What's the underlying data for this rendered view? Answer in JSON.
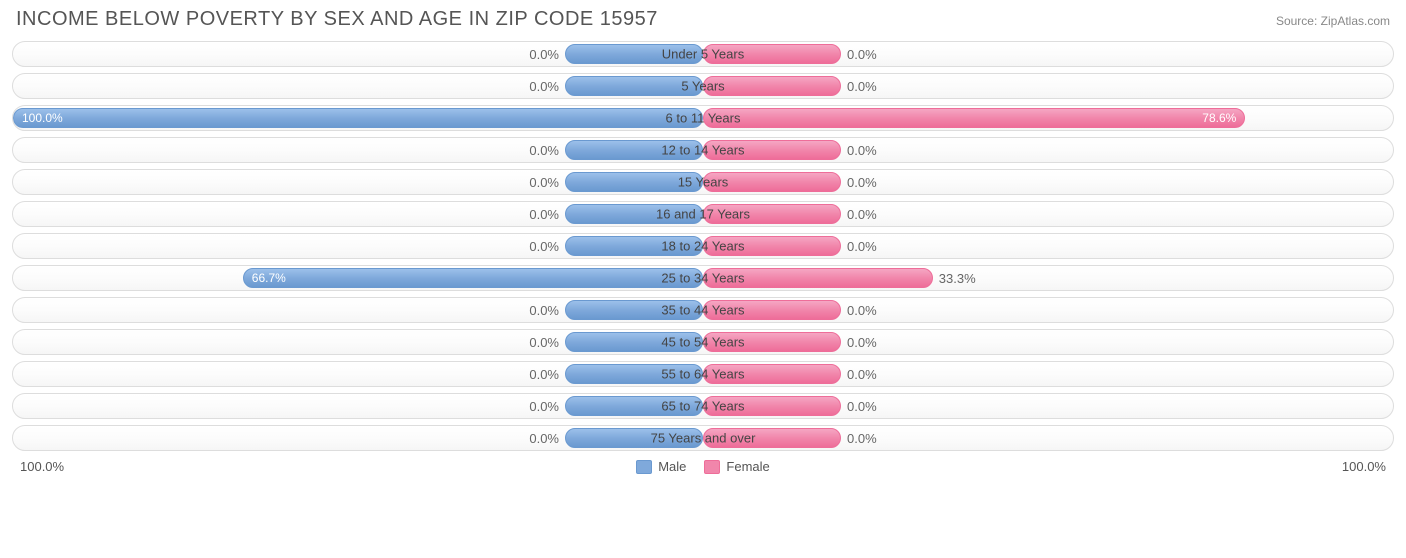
{
  "title": "INCOME BELOW POVERTY BY SEX AND AGE IN ZIP CODE 15957",
  "source": "Source: ZipAtlas.com",
  "axis": {
    "left_max": "100.0%",
    "right_max": "100.0%"
  },
  "legend": {
    "male": "Male",
    "female": "Female"
  },
  "colors": {
    "male_bar": "#7fa9db",
    "female_bar": "#f186ab",
    "track_border": "#dddddd",
    "text": "#555555",
    "background": "#ffffff"
  },
  "chart": {
    "type": "diverging-bar",
    "min_bar_pct": 20,
    "max_scale": 100,
    "categories": [
      {
        "label": "Under 5 Years",
        "male": 0.0,
        "female": 0.0,
        "male_label": "0.0%",
        "female_label": "0.0%"
      },
      {
        "label": "5 Years",
        "male": 0.0,
        "female": 0.0,
        "male_label": "0.0%",
        "female_label": "0.0%"
      },
      {
        "label": "6 to 11 Years",
        "male": 100.0,
        "female": 78.6,
        "male_label": "100.0%",
        "female_label": "78.6%"
      },
      {
        "label": "12 to 14 Years",
        "male": 0.0,
        "female": 0.0,
        "male_label": "0.0%",
        "female_label": "0.0%"
      },
      {
        "label": "15 Years",
        "male": 0.0,
        "female": 0.0,
        "male_label": "0.0%",
        "female_label": "0.0%"
      },
      {
        "label": "16 and 17 Years",
        "male": 0.0,
        "female": 0.0,
        "male_label": "0.0%",
        "female_label": "0.0%"
      },
      {
        "label": "18 to 24 Years",
        "male": 0.0,
        "female": 0.0,
        "male_label": "0.0%",
        "female_label": "0.0%"
      },
      {
        "label": "25 to 34 Years",
        "male": 66.7,
        "female": 33.3,
        "male_label": "66.7%",
        "female_label": "33.3%"
      },
      {
        "label": "35 to 44 Years",
        "male": 0.0,
        "female": 0.0,
        "male_label": "0.0%",
        "female_label": "0.0%"
      },
      {
        "label": "45 to 54 Years",
        "male": 0.0,
        "female": 0.0,
        "male_label": "0.0%",
        "female_label": "0.0%"
      },
      {
        "label": "55 to 64 Years",
        "male": 0.0,
        "female": 0.0,
        "male_label": "0.0%",
        "female_label": "0.0%"
      },
      {
        "label": "65 to 74 Years",
        "male": 0.0,
        "female": 0.0,
        "male_label": "0.0%",
        "female_label": "0.0%"
      },
      {
        "label": "75 Years and over",
        "male": 0.0,
        "female": 0.0,
        "male_label": "0.0%",
        "female_label": "0.0%"
      }
    ]
  }
}
